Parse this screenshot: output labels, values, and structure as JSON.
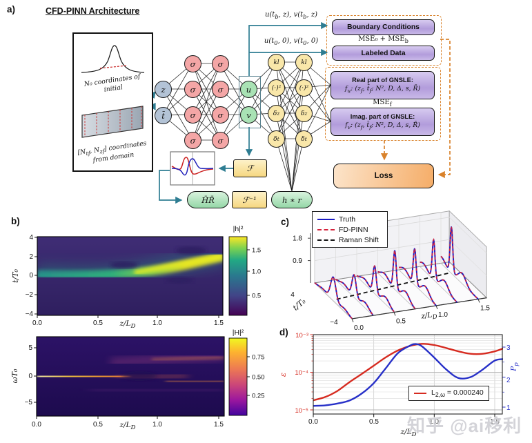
{
  "watermark": "知乎 @ai移利",
  "colors": {
    "teal_arrow": "#2e7d92",
    "orange_dashed": "#d9822b",
    "node_pink": "#f4a6a6",
    "node_yellow": "#f9e7a9",
    "node_green": "#a9e2b4",
    "node_blue": "#b3c3d6",
    "purple_box": "#b29cdb",
    "loss_orange": "#f5ad68",
    "truth_blue": "#1b1bc4",
    "pinn_red": "#d4213a"
  },
  "panel_a": {
    "label": "a)",
    "title": "CFD-PINN Architecture",
    "input_box": {
      "initial_caption_1": "N₀ coordinates of",
      "initial_caption_2": "initial",
      "domain_caption_1": "[N<sub>tf</sub>, N<sub>zf</sub>] coordinates",
      "domain_caption_2": "from domain"
    },
    "nodes": {
      "input_z": "z",
      "input_t": "t̄",
      "sigma": "σ",
      "output_u": "u",
      "output_v": "v",
      "ops": [
        "kl",
        "(·)²",
        "δ<sub>z</sub>",
        "δ<sub>t</sub>"
      ]
    },
    "arrow_labels": {
      "boundary": "u(t<sub>b</sub>, z), v(t<sub>b</sub>, z)",
      "labeled": "u(t<sub>0</sub>, 0), v(t<sub>0</sub>, 0)"
    },
    "boxes": {
      "boundary": "Boundary Conditions",
      "labeled": "Labeled Data",
      "mse_0b": "MSE₀ + MSE<sub>b</sub>",
      "mse_f": "MSE<sub>f</sub>",
      "gnsle_real_title": "Real part of GNSLE:",
      "gnsle_real_formula": "f<sub>u</sub>: (z<sub>f</sub>, t̄<sub>f</sub>; N², D, Δ, s, R̄)",
      "gnsle_imag_title": "Imag. part of GNSLE:",
      "gnsle_imag_formula": "f<sub>v</sub>: (z<sub>f</sub>, t̄<sub>f</sub>; N², D, Δ, s, R̄)",
      "loss": "Loss",
      "fourier": "ℱ",
      "inverse_fourier": "ℱ⁻¹",
      "freq_product": "H̄R̄",
      "time_convolution": "h ∗ r"
    }
  },
  "panel_b": {
    "label": "b)"
  },
  "panel_c": {
    "label": "c)"
  },
  "panel_d": {
    "label": "d)"
  },
  "chart_data": [
    {
      "id": "b_top",
      "type": "heatmap",
      "quantity": "|h|²",
      "xlabel": "z/L_D",
      "ylabel": "t/T₀",
      "xticks": [
        "0.0",
        "0.5",
        "1.0",
        "1.5"
      ],
      "yticks": [
        "4",
        "2",
        "0",
        "−2",
        "−4"
      ],
      "xrange": [
        0,
        1.57
      ],
      "yrange": [
        -4,
        4
      ],
      "colormap": "viridis",
      "colorbar_label": "|h|²",
      "colorbar_ticks": [
        "1.5",
        "1.0",
        "0.5"
      ],
      "colorbar_range": [
        0,
        1.85
      ],
      "features": "bright soliton band at t/T0≈0 for z<0.8 curving up to t/T0≈2, intensity growing from ≈1.0 to ≈1.8 near z=1.57, dark dips beside the band"
    },
    {
      "id": "b_bottom",
      "type": "heatmap",
      "quantity": "|H|²",
      "xlabel": "z/L_D",
      "ylabel": "ωT₀",
      "xticks": [
        "0.0",
        "0.5",
        "1.0",
        "1.5"
      ],
      "yticks": [
        "5",
        "0",
        "−5"
      ],
      "xrange": [
        0,
        1.57
      ],
      "yrange": [
        -7,
        7
      ],
      "colormap": "plasma",
      "colorbar_label": "|H|²",
      "colorbar_ticks": [
        "0.75",
        "0.50",
        "0.25"
      ],
      "colorbar_range": [
        0,
        0.95
      ],
      "features": "bright spectral band at ωT0≈0 (≈0.9) for z<0.6 that dims and splits into weak sidebands toward z=1.57"
    },
    {
      "id": "c_waterfall",
      "type": "line3d",
      "legend": [
        "Truth",
        "FD-PINN",
        "Raman Shift"
      ],
      "amp_ticks": [
        "1.8",
        "0.9"
      ],
      "t_axis": {
        "label": "t/T₀",
        "ticks": [
          "4",
          "−4"
        ]
      },
      "x_axis": {
        "label": "z/L_D",
        "ticks": [
          "0.0",
          "0.5",
          "1.0",
          "1.5"
        ]
      },
      "slices": [
        {
          "z": 0.0,
          "t_peak": 0.0,
          "peak": 0.95,
          "width": 0.8,
          "ped_front": 0.12,
          "ped_back": 0.08
        },
        {
          "z": 0.25,
          "t_peak": 0.05,
          "peak": 0.9,
          "width": 0.62,
          "ped_front": 0.22,
          "ped_back": 0.15
        },
        {
          "z": 0.5,
          "t_peak": 0.15,
          "peak": 1.1,
          "width": 0.5,
          "ped_front": 0.28,
          "ped_back": 0.2
        },
        {
          "z": 0.75,
          "t_peak": 0.35,
          "peak": 1.55,
          "width": 0.44,
          "ped_front": 0.33,
          "ped_back": 0.24
        },
        {
          "z": 1.0,
          "t_peak": 0.6,
          "peak": 1.45,
          "width": 0.44,
          "ped_front": 0.36,
          "ped_back": 0.26
        },
        {
          "z": 1.25,
          "t_peak": 1.05,
          "peak": 1.6,
          "width": 0.42,
          "ped_front": 0.38,
          "ped_back": 0.26
        },
        {
          "z": 1.5,
          "t_peak": 1.75,
          "peak": 1.85,
          "width": 0.4,
          "ped_front": 0.42,
          "ped_back": 0.28
        }
      ],
      "raman_shift": {
        "from": {
          "z": 0.05,
          "t": 0.2
        },
        "to": {
          "z": 1.5,
          "t": 1.9
        }
      }
    },
    {
      "id": "d_error_power",
      "type": "line",
      "xlabel": "z/L_D",
      "xticks": [
        "0.0",
        "0.5",
        "1.0",
        "1.5"
      ],
      "xrange": [
        0,
        1.57
      ],
      "left_axis": {
        "label": "ε",
        "scale": "log",
        "ticks": [
          "10⁻³",
          "10⁻⁴",
          "10⁻⁵"
        ],
        "range": [
          1e-05,
          0.001
        ],
        "color": "#d62b20"
      },
      "right_axis": {
        "label": "P<sub>p</sub>",
        "ticks": [
          "3",
          "2",
          "1"
        ],
        "range": [
          0.9,
          3.3
        ],
        "color": "#2730c8"
      },
      "legend": "L<sub>2,ω</sub> = 0.000240",
      "series": [
        {
          "name": "epsilon",
          "axis": "left",
          "color": "#d62b20",
          "points": [
            [
              0,
              1.8e-05
            ],
            [
              0.1,
              2.2e-05
            ],
            [
              0.2,
              3.2e-05
            ],
            [
              0.3,
              5.5e-05
            ],
            [
              0.4,
              9e-05
            ],
            [
              0.5,
              0.00015
            ],
            [
              0.6,
              0.00025
            ],
            [
              0.7,
              0.00038
            ],
            [
              0.8,
              0.0005
            ],
            [
              0.9,
              0.00057
            ],
            [
              1.0,
              0.00053
            ],
            [
              1.1,
              0.00044
            ],
            [
              1.2,
              0.00036
            ],
            [
              1.3,
              0.00031
            ],
            [
              1.4,
              0.00031
            ],
            [
              1.5,
              0.00036
            ],
            [
              1.57,
              0.00043
            ]
          ]
        },
        {
          "name": "P_p",
          "axis": "right",
          "color": "#2730c8",
          "points": [
            [
              0,
              1.04
            ],
            [
              0.1,
              1.06
            ],
            [
              0.2,
              1.12
            ],
            [
              0.3,
              1.22
            ],
            [
              0.4,
              1.45
            ],
            [
              0.5,
              1.8
            ],
            [
              0.6,
              2.3
            ],
            [
              0.7,
              2.8
            ],
            [
              0.8,
              3.05
            ],
            [
              0.85,
              3.1
            ],
            [
              0.9,
              3.02
            ],
            [
              1.0,
              2.65
            ],
            [
              1.1,
              2.25
            ],
            [
              1.2,
              1.97
            ],
            [
              1.3,
              2.0
            ],
            [
              1.4,
              2.25
            ],
            [
              1.5,
              2.55
            ],
            [
              1.57,
              2.6
            ]
          ]
        }
      ]
    }
  ]
}
